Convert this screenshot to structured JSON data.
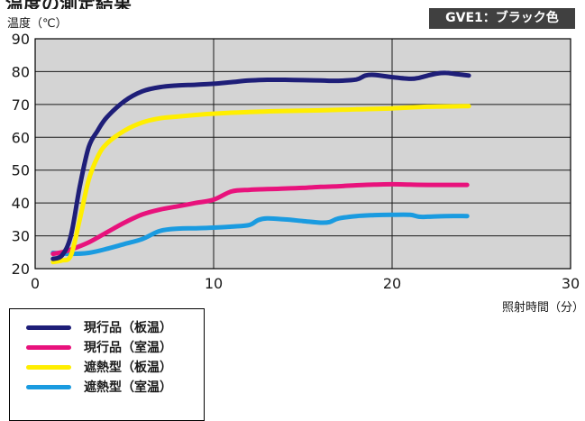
{
  "title": "温度の測定結果",
  "badge": "GVE1：ブラック色",
  "chart_data": {
    "type": "line",
    "xlabel": "照射時間（分）",
    "ylabel": "温度（℃）",
    "xlim": [
      0,
      30
    ],
    "ylim": [
      20,
      90
    ],
    "xticks": [
      0,
      10,
      20,
      30
    ],
    "yticks": [
      20,
      30,
      40,
      50,
      60,
      70,
      80,
      90
    ],
    "grid": true,
    "plot_background": "#d4d4d4",
    "legend_position": "bottom-left",
    "series": [
      {
        "name": "現行品（板温）",
        "color": "#1e1e78",
        "points": [
          [
            1,
            23
          ],
          [
            1.5,
            24
          ],
          [
            2,
            30
          ],
          [
            2.5,
            45
          ],
          [
            3,
            57
          ],
          [
            3.5,
            62
          ],
          [
            4,
            66
          ],
          [
            5,
            71
          ],
          [
            6,
            74
          ],
          [
            7,
            75.3
          ],
          [
            8,
            75.8
          ],
          [
            9,
            76
          ],
          [
            10,
            76.3
          ],
          [
            11,
            76.8
          ],
          [
            12,
            77.3
          ],
          [
            13,
            77.5
          ],
          [
            14,
            77.5
          ],
          [
            15,
            77.4
          ],
          [
            16,
            77.3
          ],
          [
            17,
            77.2
          ],
          [
            18,
            77.6
          ],
          [
            18.5,
            78.8
          ],
          [
            19,
            79
          ],
          [
            20,
            78.3
          ],
          [
            21,
            77.8
          ],
          [
            21.5,
            78.1
          ],
          [
            22,
            78.8
          ],
          [
            22.5,
            79.4
          ],
          [
            23,
            79.6
          ],
          [
            23.5,
            79.3
          ],
          [
            24,
            79
          ],
          [
            24.3,
            78.8
          ]
        ]
      },
      {
        "name": "現行品（室温）",
        "color": "#e8127c",
        "points": [
          [
            1,
            24.5
          ],
          [
            1.5,
            25
          ],
          [
            2,
            25.8
          ],
          [
            3,
            28
          ],
          [
            4,
            31
          ],
          [
            5,
            34
          ],
          [
            6,
            36.5
          ],
          [
            7,
            38
          ],
          [
            8,
            39
          ],
          [
            9,
            40
          ],
          [
            10,
            41
          ],
          [
            11,
            43.5
          ],
          [
            12,
            44
          ],
          [
            13,
            44.2
          ],
          [
            14,
            44.4
          ],
          [
            15,
            44.6
          ],
          [
            16,
            44.9
          ],
          [
            17,
            45.1
          ],
          [
            18,
            45.4
          ],
          [
            19,
            45.6
          ],
          [
            20,
            45.7
          ],
          [
            21,
            45.6
          ],
          [
            22,
            45.5
          ],
          [
            23,
            45.5
          ],
          [
            24.2,
            45.5
          ]
        ]
      },
      {
        "name": "遮熱型（板温）",
        "color": "#ffee00",
        "points": [
          [
            1,
            22
          ],
          [
            1.5,
            22.5
          ],
          [
            2,
            24
          ],
          [
            2.5,
            35
          ],
          [
            3,
            47
          ],
          [
            3.5,
            54
          ],
          [
            4,
            58
          ],
          [
            5,
            62
          ],
          [
            6,
            64.5
          ],
          [
            7,
            65.8
          ],
          [
            8,
            66.3
          ],
          [
            9,
            66.8
          ],
          [
            10,
            67.2
          ],
          [
            12,
            67.7
          ],
          [
            14,
            68
          ],
          [
            16,
            68.2
          ],
          [
            18,
            68.5
          ],
          [
            20,
            68.8
          ],
          [
            22,
            69.3
          ],
          [
            24.3,
            69.5
          ]
        ]
      },
      {
        "name": "遮熱型（室温）",
        "color": "#1a9be0",
        "points": [
          [
            1,
            24.8
          ],
          [
            2,
            24.5
          ],
          [
            3,
            24.8
          ],
          [
            4,
            26
          ],
          [
            5,
            27.5
          ],
          [
            6,
            29
          ],
          [
            7,
            31.5
          ],
          [
            8,
            32.2
          ],
          [
            9,
            32.3
          ],
          [
            10,
            32.5
          ],
          [
            11,
            32.8
          ],
          [
            12,
            33.3
          ],
          [
            12.5,
            34.8
          ],
          [
            13,
            35.3
          ],
          [
            14,
            35
          ],
          [
            15,
            34.5
          ],
          [
            16,
            34
          ],
          [
            16.5,
            34.2
          ],
          [
            17,
            35.3
          ],
          [
            18,
            36
          ],
          [
            19,
            36.3
          ],
          [
            20,
            36.4
          ],
          [
            21,
            36.4
          ],
          [
            21.5,
            35.8
          ],
          [
            22,
            35.8
          ],
          [
            23,
            36
          ],
          [
            24.2,
            36
          ]
        ]
      }
    ]
  }
}
